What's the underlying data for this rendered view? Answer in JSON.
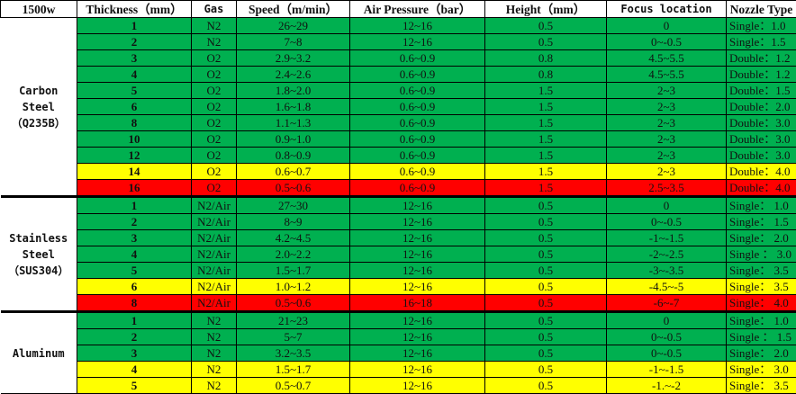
{
  "header": {
    "power": "1500w",
    "columns": [
      "Thickness（mm）",
      "Gas",
      "Speed（m/min）",
      "Air Pressure（bar）",
      "Height（mm）",
      "Focus location",
      "Nozzle Type"
    ]
  },
  "colors": {
    "green": "#00b050",
    "yellow": "#ffff00",
    "red": "#ff0000"
  },
  "groups": [
    {
      "material": [
        "Carbon",
        "Steel",
        "（Q235B）"
      ],
      "rows": [
        {
          "thickness": "1",
          "gas": "N2",
          "speed": "26~29",
          "pressure": "12~16",
          "height": "0.5",
          "focus": "0",
          "nozzle": "Single：1.0",
          "status": "green"
        },
        {
          "thickness": "2",
          "gas": "N2",
          "speed": "7~8",
          "pressure": "12~16",
          "height": "0.5",
          "focus": "0~-0.5",
          "nozzle": "Single：1.5",
          "status": "green"
        },
        {
          "thickness": "3",
          "gas": "O2",
          "speed": "2.9~3.2",
          "pressure": "0.6~0.9",
          "height": "0.8",
          "focus": "4.5~5.5",
          "nozzle": "Double：1.2",
          "status": "green"
        },
        {
          "thickness": "4",
          "gas": "O2",
          "speed": "2.4~2.6",
          "pressure": "0.6~0.9",
          "height": "0.8",
          "focus": "4.5~5.5",
          "nozzle": "Double：1.2",
          "status": "green"
        },
        {
          "thickness": "5",
          "gas": "O2",
          "speed": "1.8~2.0",
          "pressure": "0.6~0.9",
          "height": "1.5",
          "focus": "2~3",
          "nozzle": "Double：1.5",
          "status": "green"
        },
        {
          "thickness": "6",
          "gas": "O2",
          "speed": "1.6~1.8",
          "pressure": "0.6~0.9",
          "height": "1.5",
          "focus": "2~3",
          "nozzle": "Double：2.0",
          "status": "green"
        },
        {
          "thickness": "8",
          "gas": "O2",
          "speed": "1.1~1.3",
          "pressure": "0.6~0.9",
          "height": "1.5",
          "focus": "2~3",
          "nozzle": "Double：3.0",
          "status": "green"
        },
        {
          "thickness": "10",
          "gas": "O2",
          "speed": "0.9~1.0",
          "pressure": "0.6~0.9",
          "height": "1.5",
          "focus": "2~3",
          "nozzle": "Double：3.0",
          "status": "green"
        },
        {
          "thickness": "12",
          "gas": "O2",
          "speed": "0.8~0.9",
          "pressure": "0.6~0.9",
          "height": "1.5",
          "focus": "2~3",
          "nozzle": "Double：3.0",
          "status": "green"
        },
        {
          "thickness": "14",
          "gas": "O2",
          "speed": "0.6~0.7",
          "pressure": "0.6~0.9",
          "height": "1.5",
          "focus": "2~3",
          "nozzle": "Double：4.0",
          "status": "yellow"
        },
        {
          "thickness": "16",
          "gas": "O2",
          "speed": "0.5~0.6",
          "pressure": "0.6~0.9",
          "height": "1.5",
          "focus": "2.5~3.5",
          "nozzle": "Double：4.0",
          "status": "red"
        }
      ]
    },
    {
      "material": [
        "Stainless",
        "Steel",
        "（SUS304）"
      ],
      "rows": [
        {
          "thickness": "1",
          "gas": "N2/Air",
          "speed": "27~30",
          "pressure": "12~16",
          "height": "0.5",
          "focus": "0",
          "nozzle": "Single：  1.0",
          "status": "green"
        },
        {
          "thickness": "2",
          "gas": "N2/Air",
          "speed": "8~9",
          "pressure": "12~16",
          "height": "0.5",
          "focus": "0~-0.5",
          "nozzle": "Single：  1.5",
          "status": "green"
        },
        {
          "thickness": "3",
          "gas": "N2/Air",
          "speed": "4.2~4.5",
          "pressure": "12~16",
          "height": "0.5",
          "focus": "-1~-1.5",
          "nozzle": "Single：  2.0",
          "status": "green"
        },
        {
          "thickness": "4",
          "gas": "N2/Air",
          "speed": "2.0~2.2",
          "pressure": "12~16",
          "height": "0.5",
          "focus": "-2~-2.5",
          "nozzle": "Single ： 3.0",
          "status": "green"
        },
        {
          "thickness": "5",
          "gas": "N2/Air",
          "speed": "1.5~1.7",
          "pressure": "12~16",
          "height": "0.5",
          "focus": "-3~-3.5",
          "nozzle": "Single：  3.5",
          "status": "green"
        },
        {
          "thickness": "6",
          "gas": "N2/Air",
          "speed": "1.0~1.2",
          "pressure": "12~16",
          "height": "0.5",
          "focus": "-4.5~-5",
          "nozzle": "Single：  3.5",
          "status": "yellow"
        },
        {
          "thickness": "8",
          "gas": "N2/Air",
          "speed": "0.5~0.6",
          "pressure": "16~18",
          "height": "0.5",
          "focus": "-6~-7",
          "nozzle": "Single：  4.0",
          "status": "red"
        }
      ]
    },
    {
      "material": [
        "Aluminum"
      ],
      "rows": [
        {
          "thickness": "1",
          "gas": "N2",
          "speed": "21~23",
          "pressure": "12~16",
          "height": "0.5",
          "focus": "0",
          "nozzle": "Single：  1.0",
          "status": "green"
        },
        {
          "thickness": "2",
          "gas": "N2",
          "speed": "5~7",
          "pressure": "12~16",
          "height": "0.5",
          "focus": "0~-0.5",
          "nozzle": "Single ： 1.5",
          "status": "green"
        },
        {
          "thickness": "3",
          "gas": "N2",
          "speed": "3.2~3.5",
          "pressure": "12~16",
          "height": "0.5",
          "focus": "0~-0.5",
          "nozzle": "Single：  2.0",
          "status": "green"
        },
        {
          "thickness": "4",
          "gas": "N2",
          "speed": "1.5~1.7",
          "pressure": "12~16",
          "height": "0.5",
          "focus": "-1~-1.5",
          "nozzle": "Single：  3.0",
          "status": "yellow"
        },
        {
          "thickness": "5",
          "gas": "N2",
          "speed": "0.5~0.7",
          "pressure": "12~16",
          "height": "0.5",
          "focus": "-1.~-2",
          "nozzle": "Single：  3.5",
          "status": "yellow"
        }
      ]
    }
  ]
}
